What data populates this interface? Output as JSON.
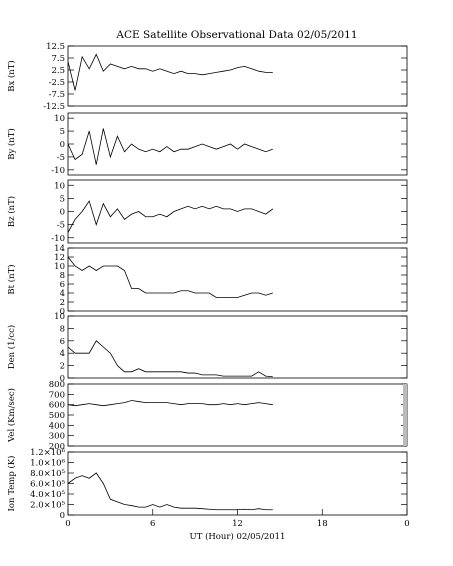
{
  "chart_data": [
    {
      "type": "line",
      "title": "ACE Satellite Observational Data   02/05/2011",
      "ylabel": "Bx (nT)",
      "xlim": [
        0,
        24
      ],
      "ylim": [
        -12.5,
        12.5
      ],
      "yticks": [
        -12.5,
        -7.5,
        -2.5,
        2.5,
        7.5,
        12.5
      ],
      "color": "#000000",
      "x": [
        0,
        0.5,
        1,
        1.5,
        2,
        2.5,
        3,
        3.5,
        4,
        4.5,
        5,
        5.5,
        6,
        6.5,
        7,
        7.5,
        8,
        8.5,
        9,
        9.5,
        10,
        10.5,
        11,
        11.5,
        12,
        12.5,
        13,
        13.5,
        14,
        14.5
      ],
      "values": [
        6,
        -6,
        8,
        3,
        9,
        2,
        5,
        4,
        3,
        4,
        3,
        3,
        2,
        3,
        2,
        1,
        2,
        1,
        1,
        0.5,
        1,
        1.5,
        2,
        2.5,
        3.5,
        4,
        3,
        2,
        1.5,
        1.5
      ]
    },
    {
      "type": "line",
      "ylabel": "By (nT)",
      "xlim": [
        0,
        24
      ],
      "ylim": [
        -12,
        12
      ],
      "yticks": [
        -10,
        -5,
        0,
        5,
        10
      ],
      "color": "#000000",
      "x": [
        0,
        0.5,
        1,
        1.5,
        2,
        2.5,
        3,
        3.5,
        4,
        4.5,
        5,
        5.5,
        6,
        6.5,
        7,
        7.5,
        8,
        8.5,
        9,
        9.5,
        10,
        10.5,
        11,
        11.5,
        12,
        12.5,
        13,
        13.5,
        14,
        14.5
      ],
      "values": [
        0,
        -6,
        -4,
        5,
        -8,
        6,
        -5,
        3,
        -3,
        0,
        -2,
        -3,
        -2,
        -3,
        -1,
        -3,
        -2,
        -2,
        -1,
        0,
        -1,
        -2,
        -1,
        0,
        -2,
        0,
        -1,
        -2,
        -3,
        -2
      ]
    },
    {
      "type": "line",
      "ylabel": "Bz (nT)",
      "xlim": [
        0,
        24
      ],
      "ylim": [
        -12,
        12
      ],
      "yticks": [
        -10,
        -5,
        0,
        5,
        10
      ],
      "color": "#000000",
      "x": [
        0,
        0.5,
        1,
        1.5,
        2,
        2.5,
        3,
        3.5,
        4,
        4.5,
        5,
        5.5,
        6,
        6.5,
        7,
        7.5,
        8,
        8.5,
        9,
        9.5,
        10,
        10.5,
        11,
        11.5,
        12,
        12.5,
        13,
        13.5,
        14,
        14.5
      ],
      "values": [
        -8,
        -3,
        0,
        4,
        -5,
        3,
        -2,
        1,
        -3,
        -1,
        0,
        -2,
        -2,
        -1,
        -2,
        0,
        1,
        2,
        1,
        2,
        1,
        2,
        1,
        1,
        0,
        1,
        1,
        0,
        -1,
        1
      ]
    },
    {
      "type": "line",
      "ylabel": "Bt (nT)",
      "xlim": [
        0,
        24
      ],
      "ylim": [
        0,
        14
      ],
      "yticks": [
        0,
        2,
        4,
        6,
        8,
        10,
        12,
        14
      ],
      "color": "#000000",
      "x": [
        0,
        0.5,
        1,
        1.5,
        2,
        2.5,
        3,
        3.5,
        4,
        4.5,
        5,
        5.5,
        6,
        6.5,
        7,
        7.5,
        8,
        8.5,
        9,
        9.5,
        10,
        10.5,
        11,
        11.5,
        12,
        12.5,
        13,
        13.5,
        14,
        14.5
      ],
      "values": [
        12,
        10,
        9,
        10,
        9,
        10,
        10,
        10,
        9,
        5,
        5,
        4,
        4,
        4,
        4,
        4,
        4.5,
        4.5,
        4,
        4,
        4,
        3,
        3,
        3,
        3,
        3.5,
        4,
        4,
        3.5,
        4
      ]
    },
    {
      "type": "line",
      "ylabel": "Den (1/cc)",
      "xlim": [
        0,
        24
      ],
      "ylim": [
        0,
        10
      ],
      "yticks": [
        0,
        2,
        4,
        6,
        8,
        10
      ],
      "color": "#000000",
      "x": [
        0,
        0.5,
        1,
        1.5,
        2,
        2.5,
        3,
        3.5,
        4,
        4.5,
        5,
        5.5,
        6,
        6.5,
        7,
        7.5,
        8,
        8.5,
        9,
        9.5,
        10,
        10.5,
        11,
        11.5,
        12,
        12.5,
        13,
        13.5,
        14,
        14.5
      ],
      "values": [
        5,
        4,
        4,
        4,
        6,
        5,
        4,
        2,
        1,
        1,
        1.5,
        1,
        1,
        1,
        1,
        1,
        1,
        0.8,
        0.8,
        0.5,
        0.5,
        0.5,
        0.3,
        0.3,
        0.3,
        0.3,
        0.3,
        1,
        0.3,
        0.2
      ]
    },
    {
      "type": "line",
      "ylabel": "Vel (Km/sec)",
      "xlim": [
        0,
        24
      ],
      "ylim": [
        200,
        800
      ],
      "yticks": [
        200,
        300,
        400,
        500,
        600,
        700,
        800
      ],
      "color": "#000000",
      "x": [
        0,
        0.5,
        1,
        1.5,
        2,
        2.5,
        3,
        3.5,
        4,
        4.5,
        5,
        5.5,
        6,
        6.5,
        7,
        7.5,
        8,
        8.5,
        9,
        9.5,
        10,
        10.5,
        11,
        11.5,
        12,
        12.5,
        13,
        13.5,
        14,
        14.5
      ],
      "values": [
        600,
        590,
        600,
        610,
        600,
        590,
        600,
        610,
        620,
        640,
        630,
        620,
        620,
        620,
        620,
        610,
        600,
        610,
        610,
        610,
        600,
        600,
        610,
        600,
        610,
        600,
        610,
        620,
        610,
        600
      ]
    },
    {
      "type": "line",
      "ylabel": "Ion Temp (K)",
      "xlabel": "UT (Hour)  02/05/2011",
      "xlim": [
        0,
        24
      ],
      "xticks": [
        0,
        6,
        12,
        18,
        {
          "value": 24,
          "label": "0"
        }
      ],
      "ylim": [
        0,
        1200000
      ],
      "yticks": [
        0,
        {
          "value": 200000,
          "label": "2.0×10⁵"
        },
        {
          "value": 400000,
          "label": "4.0×10⁵"
        },
        {
          "value": 600000,
          "label": "6.0×10⁵"
        },
        {
          "value": 800000,
          "label": "8.0×10⁵"
        },
        {
          "value": 1000000,
          "label": "1.0×10⁶"
        },
        {
          "value": 1200000,
          "label": "1.2×10⁶"
        }
      ],
      "color": "#000000",
      "x": [
        0,
        0.5,
        1,
        1.5,
        2,
        2.5,
        3,
        3.5,
        4,
        4.5,
        5,
        5.5,
        6,
        6.5,
        7,
        7.5,
        8,
        8.5,
        9,
        9.5,
        10,
        10.5,
        11,
        11.5,
        12,
        12.5,
        13,
        13.5,
        14,
        14.5
      ],
      "values": [
        600000,
        700000,
        750000,
        700000,
        800000,
        600000,
        300000,
        250000,
        200000,
        180000,
        150000,
        150000,
        200000,
        150000,
        200000,
        150000,
        130000,
        130000,
        130000,
        120000,
        110000,
        100000,
        100000,
        100000,
        100000,
        110000,
        100000,
        120000,
        100000,
        100000
      ]
    }
  ]
}
